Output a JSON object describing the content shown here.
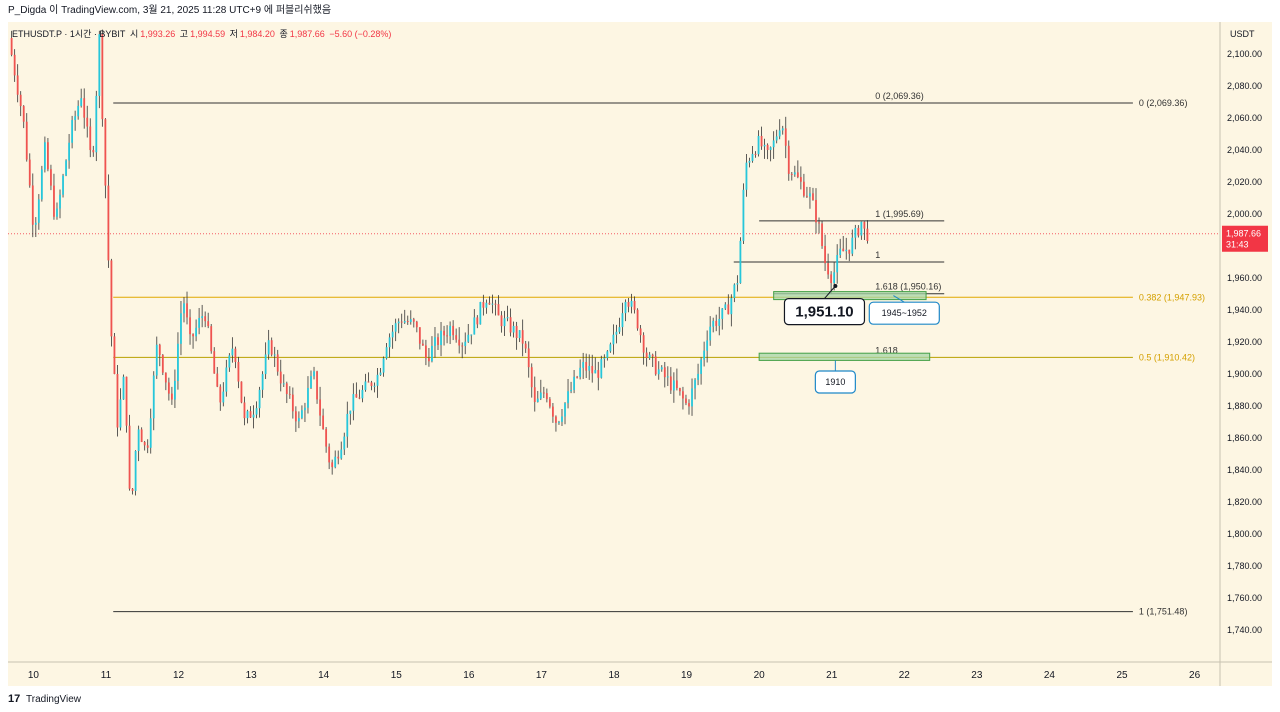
{
  "header": {
    "text": "P_Digda 이 TradingView.com, 3월 21, 2025 11:28 UTC+9 에 퍼블리쉬했음"
  },
  "legend": {
    "symbol": "ETHUSDT.P · 1시간 · BYBIT",
    "open_label": "시",
    "open": "1,993.26",
    "high_label": "고",
    "high": "1,994.59",
    "low_label": "저",
    "low": "1,984.20",
    "close_label": "종",
    "close": "1,987.66",
    "change": "−5.60 (−0.28%)"
  },
  "axis": {
    "currency": "USDT",
    "current_price": "1,987.66",
    "countdown": "31:43"
  },
  "footer": {
    "logo": "17",
    "brand": "TradingView"
  },
  "chart_data": {
    "type": "candlestick",
    "title": "ETHUSDT.P 1H",
    "ylim": [
      1720,
      2120
    ],
    "y_ticks": [
      {
        "v": 1740,
        "label": "1,740.00"
      },
      {
        "v": 1760,
        "label": "1,760.00"
      },
      {
        "v": 1780,
        "label": "1,780.00"
      },
      {
        "v": 1800,
        "label": "1,800.00"
      },
      {
        "v": 1820,
        "label": "1,820.00"
      },
      {
        "v": 1840,
        "label": "1,840.00"
      },
      {
        "v": 1860,
        "label": "1,860.00"
      },
      {
        "v": 1880,
        "label": "1,880.00"
      },
      {
        "v": 1900,
        "label": "1,900.00"
      },
      {
        "v": 1920,
        "label": "1,920.00"
      },
      {
        "v": 1940,
        "label": "1,940.00"
      },
      {
        "v": 1960,
        "label": "1,960.00"
      },
      {
        "v": 1980,
        "label": "1,980.00"
      },
      {
        "v": 2000,
        "label": "2,000.00"
      },
      {
        "v": 2020,
        "label": "2,020.00"
      },
      {
        "v": 2040,
        "label": "2,040.00"
      },
      {
        "v": 2060,
        "label": "2,060.00"
      },
      {
        "v": 2080,
        "label": "2,080.00"
      },
      {
        "v": 2100,
        "label": "2,100.00"
      }
    ],
    "xlim": [
      9.65,
      26.35
    ],
    "x_ticks": [
      {
        "v": 10,
        "label": "10"
      },
      {
        "v": 11,
        "label": "11"
      },
      {
        "v": 12,
        "label": "12"
      },
      {
        "v": 13,
        "label": "13"
      },
      {
        "v": 14,
        "label": "14"
      },
      {
        "v": 15,
        "label": "15"
      },
      {
        "v": 16,
        "label": "16"
      },
      {
        "v": 17,
        "label": "17"
      },
      {
        "v": 18,
        "label": "18"
      },
      {
        "v": 19,
        "label": "19"
      },
      {
        "v": 20,
        "label": "20"
      },
      {
        "v": 21,
        "label": "21"
      },
      {
        "v": 22,
        "label": "22"
      },
      {
        "v": 23,
        "label": "23"
      },
      {
        "v": 24,
        "label": "24"
      },
      {
        "v": 25,
        "label": "25"
      },
      {
        "v": 26,
        "label": "26"
      }
    ],
    "current_price": 1987.66,
    "price_path": [
      [
        9.7,
        2110
      ],
      [
        9.9,
        2060
      ],
      [
        10.05,
        1990
      ],
      [
        10.2,
        2040
      ],
      [
        10.35,
        1995
      ],
      [
        10.55,
        2050
      ],
      [
        10.7,
        2075
      ],
      [
        10.85,
        2030
      ],
      [
        10.95,
        2110
      ],
      [
        11.05,
        2000
      ],
      [
        11.12,
        1920
      ],
      [
        11.2,
        1870
      ],
      [
        11.3,
        1900
      ],
      [
        11.38,
        1810
      ],
      [
        11.48,
        1870
      ],
      [
        11.6,
        1850
      ],
      [
        11.75,
        1920
      ],
      [
        11.95,
        1880
      ],
      [
        12.1,
        1950
      ],
      [
        12.2,
        1920
      ],
      [
        12.4,
        1940
      ],
      [
        12.6,
        1880
      ],
      [
        12.8,
        1920
      ],
      [
        12.95,
        1870
      ],
      [
        13.1,
        1880
      ],
      [
        13.3,
        1920
      ],
      [
        13.5,
        1890
      ],
      [
        13.7,
        1870
      ],
      [
        13.9,
        1900
      ],
      [
        14.05,
        1860
      ],
      [
        14.15,
        1840
      ],
      [
        14.3,
        1860
      ],
      [
        14.4,
        1880
      ],
      [
        14.6,
        1890
      ],
      [
        14.8,
        1900
      ],
      [
        14.9,
        1920
      ],
      [
        15.1,
        1935
      ],
      [
        15.3,
        1930
      ],
      [
        15.45,
        1910
      ],
      [
        15.6,
        1920
      ],
      [
        15.8,
        1930
      ],
      [
        15.95,
        1920
      ],
      [
        16.1,
        1930
      ],
      [
        16.3,
        1950
      ],
      [
        16.45,
        1935
      ],
      [
        16.6,
        1930
      ],
      [
        16.8,
        1920
      ],
      [
        16.95,
        1880
      ],
      [
        17.1,
        1890
      ],
      [
        17.25,
        1870
      ],
      [
        17.4,
        1885
      ],
      [
        17.6,
        1905
      ],
      [
        17.8,
        1900
      ],
      [
        17.95,
        1910
      ],
      [
        18.1,
        1930
      ],
      [
        18.2,
        1950
      ],
      [
        18.35,
        1935
      ],
      [
        18.5,
        1910
      ],
      [
        18.7,
        1900
      ],
      [
        18.9,
        1890
      ],
      [
        19.05,
        1880
      ],
      [
        19.2,
        1900
      ],
      [
        19.35,
        1930
      ],
      [
        19.5,
        1935
      ],
      [
        19.6,
        1940
      ],
      [
        19.75,
        1960
      ],
      [
        19.85,
        2030
      ],
      [
        19.95,
        2040
      ],
      [
        20.05,
        2045
      ],
      [
        20.15,
        2035
      ],
      [
        20.25,
        2045
      ],
      [
        20.35,
        2060
      ],
      [
        20.45,
        2030
      ],
      [
        20.6,
        2020
      ],
      [
        20.75,
        2010
      ],
      [
        20.85,
        1995
      ],
      [
        20.95,
        1970
      ],
      [
        21.05,
        1960
      ],
      [
        21.15,
        1975
      ],
      [
        21.3,
        1980
      ],
      [
        21.45,
        1995
      ],
      [
        21.5,
        1987.66
      ]
    ],
    "fib_lines": [
      {
        "price": 2069.36,
        "x1": 11.1,
        "x2": 25.15,
        "color": "#333333",
        "label_mid": "0 (2,069.36)",
        "label_mid_x": 21.6,
        "label_right": "0 (2,069.36)"
      },
      {
        "price": 1995.69,
        "x1": 20.0,
        "x2": 22.55,
        "color": "#333333",
        "label_mid": "1 (1,995.69)",
        "label_mid_x": 21.6,
        "label_right": ""
      },
      {
        "price": 1970,
        "x1": 19.65,
        "x2": 22.55,
        "color": "#333333",
        "label_mid": "1",
        "label_mid_x": 21.6,
        "label_right": ""
      },
      {
        "price": 1950.16,
        "x1": 20.2,
        "x2": 22.55,
        "color": "#333333",
        "label_mid": "1.618 (1,950.16)",
        "label_mid_x": 21.6,
        "label_right": ""
      },
      {
        "price": 1947.93,
        "x1": 11.1,
        "x2": 25.15,
        "color": "#e0a800",
        "label_mid": "",
        "label_mid_x": 21.6,
        "label_right": "0.382 (1,947.93)"
      },
      {
        "price": 1910.42,
        "x1": 11.1,
        "x2": 25.15,
        "color": "#b8a000",
        "label_mid": "1.618",
        "label_mid_x": 21.6,
        "label_right": "0.5 (1,910.42)"
      },
      {
        "price": 1751.48,
        "x1": 11.1,
        "x2": 25.15,
        "color": "#333333",
        "label_mid": "",
        "label_mid_x": 21.6,
        "label_right": "1 (1,751.48)"
      }
    ],
    "zones": [
      {
        "y_top": 1951.5,
        "y_bottom": 1946.5,
        "x1": 20.2,
        "x2": 22.3
      },
      {
        "y_top": 1913,
        "y_bottom": 1908.5,
        "x1": 20.0,
        "x2": 22.35
      }
    ],
    "callouts": [
      {
        "text": "1,951.10",
        "cx": 20.9,
        "price": 1939,
        "point_x": 21.05,
        "point_price": 1955,
        "large": true
      },
      {
        "text": "1945~1952",
        "cx": 22.0,
        "price": 1938,
        "point_x": 21.85,
        "point_price": 1949,
        "large": false
      },
      {
        "text": "1910",
        "cx": 21.05,
        "price": 1895,
        "point_x": 21.05,
        "point_price": 1908.5,
        "large": false
      }
    ]
  }
}
